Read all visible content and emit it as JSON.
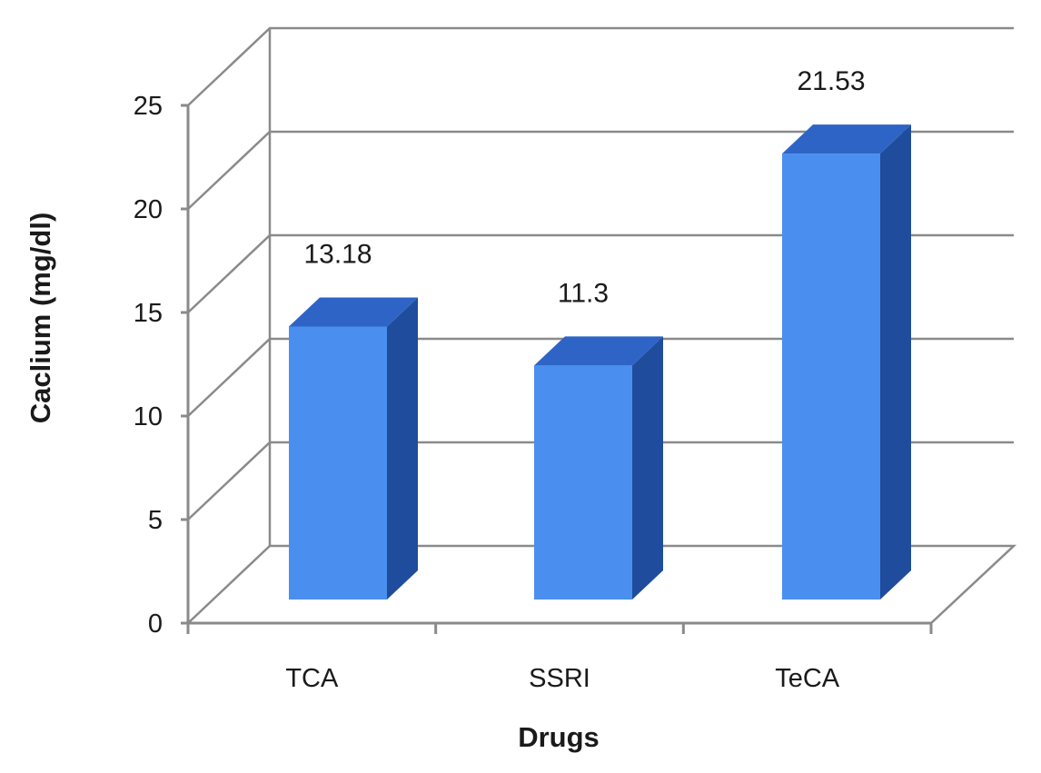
{
  "chart_data": {
    "type": "bar",
    "categories": [
      "TCA",
      "SSRI",
      "TeCA"
    ],
    "values": [
      13.18,
      11.3,
      21.53
    ],
    "data_labels": [
      "13.18",
      "11.3",
      "21.53"
    ],
    "xlabel": "Drugs",
    "ylabel": "Caclium (mg/dl)",
    "ylim": [
      0,
      25
    ],
    "yticks": [
      "0",
      "5",
      "10",
      "15",
      "20",
      "25"
    ],
    "grid": true,
    "style": "3d-column",
    "colors": {
      "bar_front": "#4A8FEF",
      "bar_side": "#1F4C9C",
      "bar_top": "#2E64C6",
      "grid": "#8A8A8A"
    }
  }
}
